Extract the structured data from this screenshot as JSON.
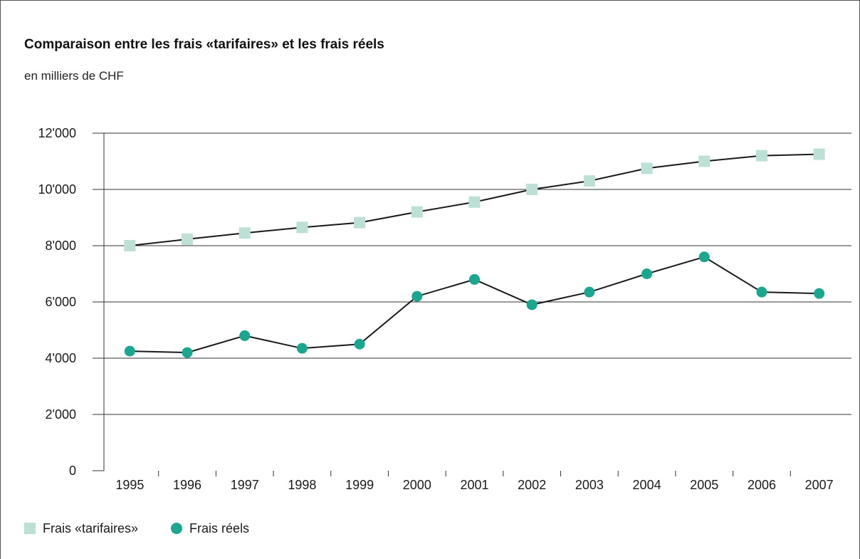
{
  "title": "Comparaison entre les frais «tarifaires» et les frais réels",
  "subtitle": "en milliers de CHF",
  "colors": {
    "tarifaires": "#bde0d6",
    "reels": "#1aa68f",
    "line": "#1a1a1a",
    "grid": "#333333"
  },
  "legend": {
    "tarifaires_label": "Frais «tarifaires»",
    "reels_label": "Frais réels"
  },
  "chart_data": {
    "type": "line",
    "x": [
      "1995",
      "1996",
      "1997",
      "1998",
      "1999",
      "2000",
      "2001",
      "2002",
      "2003",
      "2004",
      "2005",
      "2006",
      "2007"
    ],
    "y_ticks": [
      "0",
      "2'000",
      "4'000",
      "6'000",
      "8'000",
      "10'000",
      "12'000"
    ],
    "ylim": [
      0,
      12000
    ],
    "grid": true,
    "legend_position": "bottom-left",
    "series": [
      {
        "name": "Frais «tarifaires»",
        "marker": "square",
        "values": [
          8000,
          8230,
          8450,
          8650,
          8820,
          9200,
          9550,
          10000,
          10300,
          10750,
          11000,
          11200,
          11250
        ]
      },
      {
        "name": "Frais réels",
        "marker": "circle",
        "values": [
          4250,
          4200,
          4800,
          4350,
          4500,
          6200,
          6800,
          5900,
          6350,
          7000,
          7600,
          6350,
          6300
        ]
      }
    ]
  }
}
